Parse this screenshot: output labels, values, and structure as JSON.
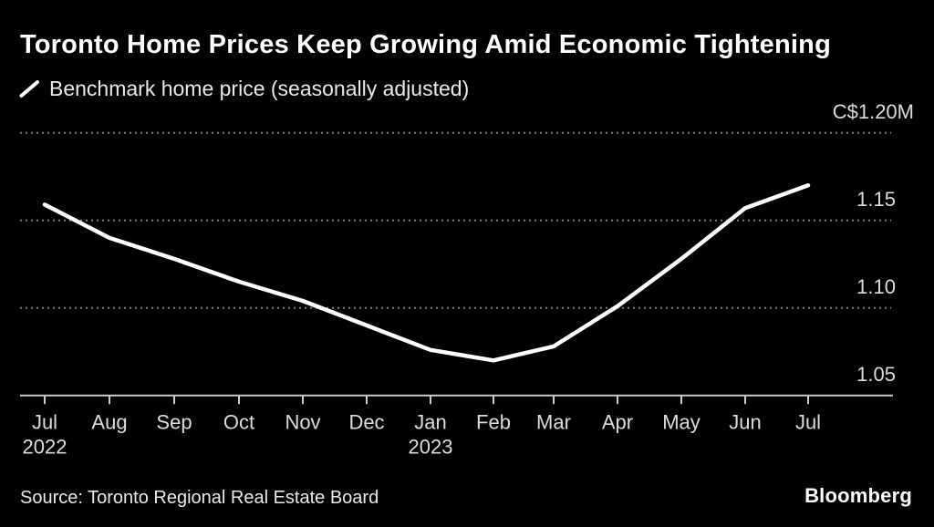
{
  "title": "Toronto Home Prices Keep Growing Amid Economic Tightening",
  "legend": {
    "marker": "diagonal-line",
    "label": "Benchmark home price (seasonally adjusted)"
  },
  "source": "Source: Toronto Regional Real Estate Board",
  "branding": "Bloomberg",
  "colors": {
    "background": "#000000",
    "line": "#ffffff",
    "grid": "#7d7d7d",
    "axis": "#c9c9c9",
    "tick_text": "#dcdcdc",
    "title_text": "#ffffff"
  },
  "chart_data": {
    "type": "line",
    "title": "Toronto Home Prices Keep Growing Amid Economic Tightening",
    "series": [
      {
        "name": "Benchmark home price (seasonally adjusted)",
        "values": [
          1.159,
          1.14,
          1.128,
          1.115,
          1.104,
          1.09,
          1.076,
          1.07,
          1.078,
          1.101,
          1.128,
          1.157,
          1.17
        ]
      }
    ],
    "x": [
      "Jul 2022",
      "Aug 2022",
      "Sep 2022",
      "Oct 2022",
      "Nov 2022",
      "Dec 2022",
      "Jan 2023",
      "Feb 2023",
      "Mar 2023",
      "Apr 2023",
      "May 2023",
      "Jun 2023",
      "Jul 2023"
    ],
    "x_tick_labels": [
      "Jul",
      "Aug",
      "Sep",
      "Oct",
      "Nov",
      "Dec",
      "Jan",
      "Feb",
      "Mar",
      "Apr",
      "May",
      "Jun",
      "Jul"
    ],
    "x_year_rows": [
      {
        "tick_index": 0,
        "label": "2022"
      },
      {
        "tick_index": 6,
        "label": "2023"
      }
    ],
    "y_ticks": [
      {
        "value": 1.05,
        "label": "1.05"
      },
      {
        "value": 1.1,
        "label": "1.10"
      },
      {
        "value": 1.15,
        "label": "1.15"
      },
      {
        "value": 1.2,
        "label": "C$1.20M"
      }
    ],
    "ylim": [
      1.05,
      1.225
    ],
    "unit": "C$ millions",
    "grid": "horizontal-dotted",
    "legend_position": "top-left"
  }
}
